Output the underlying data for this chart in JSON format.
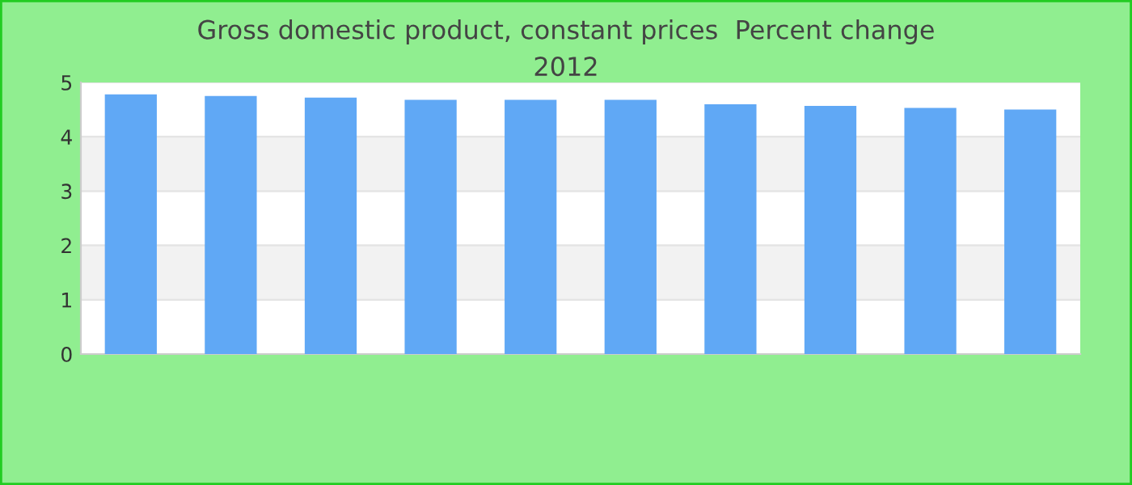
{
  "chart_data": {
    "type": "bar",
    "title": "Gross domestic product, constant prices  Percent change\n2012",
    "categories": [
      null,
      null,
      null,
      null,
      null,
      null,
      null,
      null,
      null,
      null
    ],
    "values": [
      4.78,
      4.75,
      4.72,
      4.68,
      4.68,
      4.68,
      4.6,
      4.57,
      4.53,
      4.5
    ],
    "color": "#60a8f5",
    "ylim": [
      0,
      5
    ],
    "yticks": [
      0,
      1,
      2,
      3,
      4,
      5
    ],
    "grid": "y"
  }
}
